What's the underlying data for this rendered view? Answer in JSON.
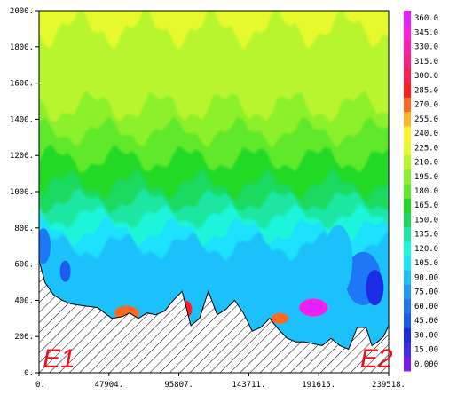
{
  "chart_data": {
    "type": "heatmap",
    "title": "",
    "xlabel": "",
    "ylabel": "",
    "xlim": [
      0,
      239518
    ],
    "ylim": [
      0,
      2000
    ],
    "x_ticks": [
      {
        "value": 0,
        "label": "0."
      },
      {
        "value": 47904,
        "label": "47904."
      },
      {
        "value": 95807,
        "label": "95807."
      },
      {
        "value": 143711,
        "label": "143711."
      },
      {
        "value": 191615,
        "label": "191615."
      },
      {
        "value": 239518,
        "label": "239518."
      }
    ],
    "y_ticks": [
      {
        "value": 0,
        "label": "0."
      },
      {
        "value": 200,
        "label": "200."
      },
      {
        "value": 400,
        "label": "400."
      },
      {
        "value": 600,
        "label": "600."
      },
      {
        "value": 800,
        "label": "800."
      },
      {
        "value": 1000,
        "label": "1000."
      },
      {
        "value": 1200,
        "label": "1200."
      },
      {
        "value": 1400,
        "label": "1400."
      },
      {
        "value": 1600,
        "label": "1600."
      },
      {
        "value": 1800,
        "label": "1800."
      },
      {
        "value": 2000,
        "label": "2000."
      }
    ],
    "colorbar": {
      "levels": [
        {
          "label": "0.000",
          "color": "#7c1cf4"
        },
        {
          "label": "15.00",
          "color": "#3c2ef0"
        },
        {
          "label": "30.00",
          "color": "#1b2ee6"
        },
        {
          "label": "45.00",
          "color": "#1e5cf0"
        },
        {
          "label": "60.00",
          "color": "#1e78f5"
        },
        {
          "label": "75.00",
          "color": "#1f9af7"
        },
        {
          "label": "90.00",
          "color": "#1cc0fa"
        },
        {
          "label": "105.0",
          "color": "#1ee1ff"
        },
        {
          "label": "120.0",
          "color": "#1ef5d9"
        },
        {
          "label": "135.0",
          "color": "#1ee6a2"
        },
        {
          "label": "150.0",
          "color": "#1ed95e"
        },
        {
          "label": "165.0",
          "color": "#22d926"
        },
        {
          "label": "180.0",
          "color": "#60e82a"
        },
        {
          "label": "195.0",
          "color": "#8cf02a"
        },
        {
          "label": "210.0",
          "color": "#b9f52d"
        },
        {
          "label": "225.0",
          "color": "#e6f92e"
        },
        {
          "label": "240.0",
          "color": "#fff12b"
        },
        {
          "label": "255.0",
          "color": "#ffb327"
        },
        {
          "label": "270.0",
          "color": "#ff6a22"
        },
        {
          "label": "285.0",
          "color": "#ff1e1e"
        },
        {
          "label": "300.0",
          "color": "#ff1e4e"
        },
        {
          "label": "315.0",
          "color": "#ff1e82"
        },
        {
          "label": "330.0",
          "color": "#ff1eb4"
        },
        {
          "label": "345.0",
          "color": "#ff1ee6"
        },
        {
          "label": "360.0",
          "color": "#e61eff"
        }
      ]
    },
    "annotations": [
      {
        "text": "E1",
        "x": 2500,
        "y": 30
      },
      {
        "text": "E2",
        "x": 220000,
        "y": 30
      }
    ],
    "terrain_profile": {
      "x": [
        0,
        4000,
        10000,
        16000,
        22000,
        30000,
        40000,
        50000,
        57000,
        62000,
        68000,
        74000,
        80000,
        86000,
        92000,
        98000,
        104000,
        110000,
        116000,
        122000,
        128000,
        134000,
        140000,
        146000,
        152000,
        158000,
        164000,
        170000,
        176000,
        182000,
        188000,
        194000,
        200000,
        206000,
        212000,
        218000,
        224000,
        228000,
        232000,
        236000,
        239518
      ],
      "y": [
        620,
        500,
        430,
        400,
        380,
        370,
        360,
        300,
        310,
        330,
        300,
        330,
        320,
        340,
        400,
        450,
        260,
        300,
        450,
        320,
        350,
        400,
        330,
        230,
        250,
        300,
        240,
        190,
        170,
        170,
        160,
        150,
        190,
        150,
        130,
        250,
        250,
        150,
        170,
        200,
        260
      ]
    }
  }
}
